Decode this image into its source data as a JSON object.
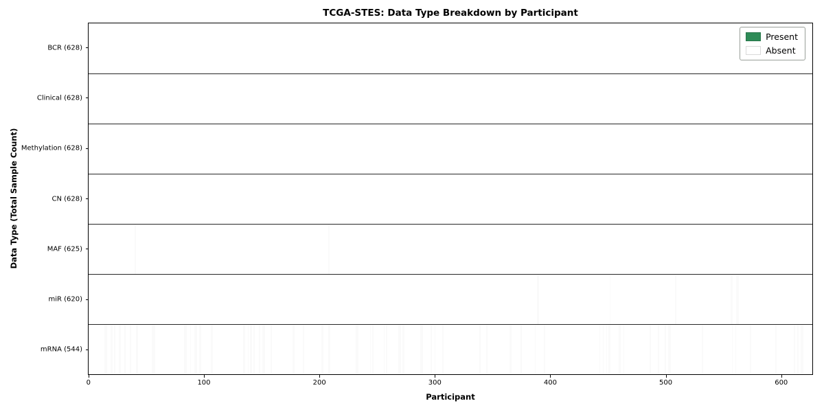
{
  "chart_data": {
    "type": "heatmap",
    "title": "TCGA-STES: Data Type Breakdown by Participant",
    "xlabel": "Participant",
    "ylabel": "Data Type (Total Sample Count)",
    "n_participants": 628,
    "x_range": [
      0,
      628
    ],
    "x_ticks": [
      0,
      100,
      200,
      300,
      400,
      500,
      600
    ],
    "grid": false,
    "legend_position": "upper right",
    "legend": [
      {
        "name": "present",
        "label": "Present",
        "color": "#2e8b57"
      },
      {
        "name": "absent",
        "label": "Absent",
        "color": "#ffffff"
      }
    ],
    "colors": {
      "present_fill": "#2e8b57",
      "present_edge": "#235c3e",
      "absent_fill": "#fafafa",
      "row_separator": "#000000",
      "plot_border": "#000000"
    },
    "rows": [
      {
        "name": "BCR",
        "label": "BCR (628)",
        "present_count": 628,
        "absent_participants": []
      },
      {
        "name": "Clinical",
        "label": "Clinical (628)",
        "present_count": 628,
        "absent_participants": []
      },
      {
        "name": "Methylation",
        "label": "Methylation (628)",
        "present_count": 628,
        "absent_participants": []
      },
      {
        "name": "CN",
        "label": "CN (628)",
        "present_count": 628,
        "absent_participants": []
      },
      {
        "name": "MAF",
        "label": "MAF (625)",
        "present_count": 625,
        "absent_participants": [
          0,
          40,
          208
        ]
      },
      {
        "name": "miR",
        "label": "miR (620)",
        "present_count": 620,
        "absent_participants": [
          389,
          390,
          452,
          509,
          557,
          558,
          562,
          563
        ]
      },
      {
        "name": "mRNA",
        "label": "mRNA (544)",
        "present_count": 544,
        "absent_participants": [
          14,
          15,
          19,
          20,
          22,
          26,
          27,
          31,
          36,
          41,
          42,
          55,
          56,
          57,
          83,
          84,
          88,
          92,
          93,
          96,
          97,
          106,
          107,
          134,
          135,
          138,
          140,
          141,
          143,
          148,
          151,
          152,
          158,
          177,
          178,
          186,
          202,
          203,
          208,
          209,
          232,
          233,
          244,
          246,
          256,
          258,
          269,
          270,
          272,
          273,
          288,
          289,
          297,
          300,
          307,
          339,
          345,
          365,
          366,
          375,
          387,
          395,
          443,
          446,
          449,
          451,
          452,
          460,
          461,
          464,
          487,
          494,
          500,
          503,
          504,
          532,
          558,
          561,
          574,
          596,
          612,
          615,
          618,
          619
        ]
      }
    ]
  }
}
